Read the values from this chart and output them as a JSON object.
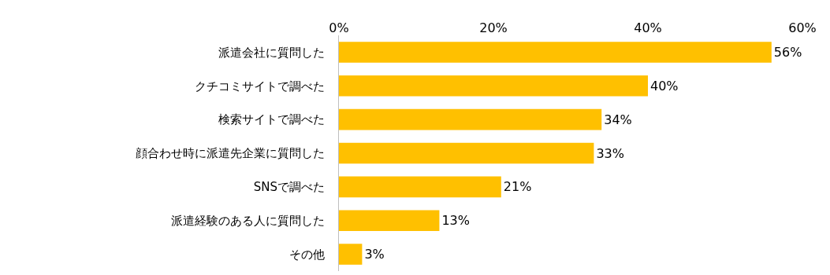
{
  "chart_data": {
    "type": "bar",
    "orientation": "horizontal",
    "categories": [
      "派遣会社に質問した",
      "クチコミサイトで調べた",
      "検索サイトで調べた",
      "顔合わせ時に派遣先企業に質問した",
      "SNSで調べた",
      "派遣経験のある人に質問した",
      "その他"
    ],
    "values": [
      56,
      40,
      34,
      33,
      21,
      13,
      3
    ],
    "value_labels": [
      "56%",
      "40%",
      "34%",
      "33%",
      "21%",
      "13%",
      "3%"
    ],
    "color": "#ffc000",
    "xlim": [
      0,
      60
    ],
    "xticks": [
      {
        "value": 0,
        "label": "0%"
      },
      {
        "value": 20,
        "label": "20%"
      },
      {
        "value": 40,
        "label": "40%"
      },
      {
        "value": 60,
        "label": "60%"
      }
    ],
    "tick_labels": "xy"
  }
}
